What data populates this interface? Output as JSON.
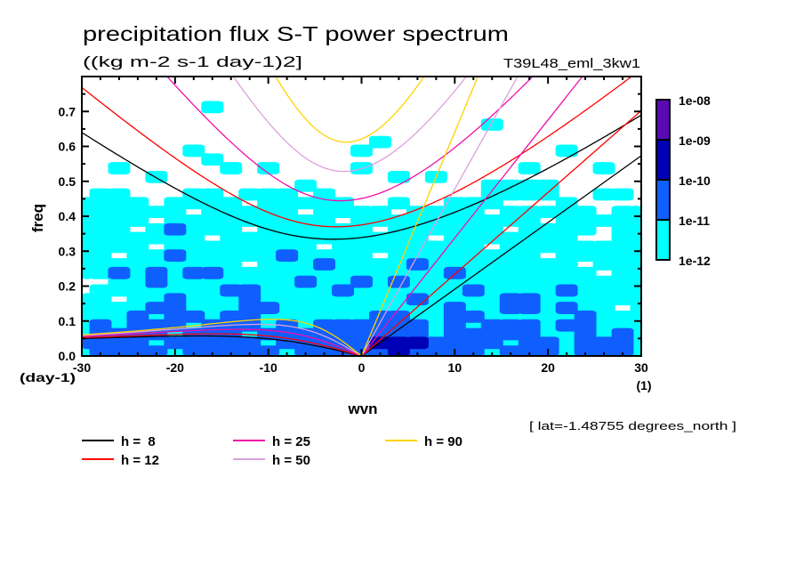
{
  "chart_data": {
    "type": "heatmap",
    "title": "precipitation flux S-T power spectrum",
    "subtitle": "((kg m-2 s-1 day-1)2]",
    "run_label": "T39L48_eml_3kw1",
    "footnote": "[ lat=-1.48755 degrees_north ]",
    "xlabel": "wvn",
    "xunits": "(1)",
    "ylabel": "freq",
    "yunits": "(day-1)",
    "xlim": [
      -30,
      30
    ],
    "ylim": [
      0,
      0.8
    ],
    "xticks": [
      -30,
      -20,
      -10,
      0,
      10,
      20,
      30
    ],
    "xtick_labels": [
      "-30",
      "-20",
      "-10",
      "0",
      "10",
      "20",
      "30"
    ],
    "minor_xtick_step": 2,
    "yticks": [
      0,
      0.1,
      0.2,
      0.3,
      0.4,
      0.5,
      0.6,
      0.7
    ],
    "ytick_labels": [
      "0.0",
      "0.1",
      "0.2",
      "0.3",
      "0.4",
      "0.5",
      "0.6",
      "0.7"
    ],
    "minor_ytick_step": 0.05,
    "grid_lines": false,
    "colorbar": {
      "position": "right",
      "levels": [
        "1e-12",
        "1e-11",
        "1e-10",
        "1e-09",
        "1e-08"
      ],
      "colors": [
        "#00ffff",
        "#0f5fff",
        "#0000b4",
        "#5a0ab4"
      ]
    },
    "grid": {
      "wavenumbers": [
        -30,
        -28,
        -26,
        -24,
        -22,
        -20,
        -18,
        -16,
        -14,
        -12,
        -10,
        -8,
        -6,
        -4,
        -2,
        0,
        2,
        4,
        6,
        8,
        10,
        12,
        14,
        16,
        18,
        20,
        22,
        24,
        26,
        28,
        30
      ],
      "frequencies": [
        0.7875,
        0.7625,
        0.7375,
        0.7125,
        0.6875,
        0.6625,
        0.6375,
        0.6125,
        0.5875,
        0.5625,
        0.5375,
        0.5125,
        0.4875,
        0.4625,
        0.4375,
        0.4125,
        0.3875,
        0.3625,
        0.3375,
        0.3125,
        0.2875,
        0.2625,
        0.2375,
        0.2125,
        0.1875,
        0.1625,
        0.1375,
        0.1125,
        0.0875,
        0.0625,
        0.0375,
        0.0125
      ],
      "levels": [
        [
          0,
          0,
          0,
          0,
          0,
          0,
          0,
          0,
          0,
          0,
          0,
          0,
          0,
          0,
          0,
          0,
          0,
          0,
          0,
          0,
          0,
          0,
          0,
          0,
          0,
          0,
          0,
          0,
          0,
          0,
          0
        ],
        [
          0,
          0,
          0,
          0,
          0,
          0,
          0,
          0,
          0,
          0,
          0,
          0,
          0,
          0,
          0,
          0,
          0,
          0,
          0,
          0,
          0,
          0,
          0,
          0,
          0,
          0,
          0,
          0,
          0,
          0,
          0
        ],
        [
          0,
          0,
          0,
          0,
          0,
          0,
          0,
          0,
          0,
          0,
          0,
          0,
          0,
          0,
          0,
          0,
          0,
          0,
          0,
          0,
          0,
          0,
          0,
          0,
          0,
          0,
          0,
          0,
          0,
          0,
          0
        ],
        [
          0,
          0,
          0,
          0,
          0,
          0,
          0,
          1,
          0,
          0,
          0,
          0,
          0,
          0,
          0,
          0,
          0,
          0,
          0,
          0,
          0,
          0,
          0,
          0,
          0,
          0,
          0,
          0,
          0,
          0,
          0
        ],
        [
          0,
          0,
          0,
          0,
          0,
          0,
          0,
          0,
          0,
          0,
          0,
          0,
          0,
          0,
          0,
          0,
          0,
          0,
          0,
          0,
          0,
          0,
          0,
          0,
          0,
          0,
          0,
          0,
          0,
          0,
          0
        ],
        [
          0,
          0,
          0,
          0,
          0,
          0,
          0,
          0,
          0,
          0,
          0,
          0,
          0,
          0,
          0,
          0,
          0,
          0,
          0,
          0,
          0,
          0,
          1,
          0,
          0,
          0,
          0,
          0,
          0,
          0,
          0
        ],
        [
          0,
          0,
          0,
          0,
          0,
          0,
          0,
          0,
          0,
          0,
          0,
          0,
          0,
          0,
          0,
          0,
          0,
          0,
          0,
          0,
          0,
          0,
          0,
          0,
          0,
          0,
          0,
          0,
          0,
          0,
          0
        ],
        [
          0,
          0,
          0,
          0,
          0,
          0,
          0,
          0,
          0,
          0,
          0,
          0,
          0,
          0,
          0,
          0,
          1,
          0,
          0,
          0,
          0,
          0,
          0,
          0,
          0,
          0,
          0,
          0,
          0,
          0,
          0
        ],
        [
          0,
          0,
          0,
          0,
          0,
          0,
          1,
          0,
          0,
          0,
          0,
          0,
          0,
          0,
          0,
          1,
          0,
          0,
          0,
          0,
          0,
          0,
          0,
          0,
          0,
          0,
          1,
          0,
          0,
          0,
          0
        ],
        [
          0,
          0,
          0,
          0,
          0,
          0,
          0,
          1,
          0,
          0,
          0,
          0,
          0,
          0,
          0,
          0,
          0,
          0,
          0,
          0,
          0,
          0,
          0,
          0,
          0,
          0,
          0,
          0,
          0,
          0,
          0
        ],
        [
          0,
          0,
          1,
          0,
          0,
          0,
          0,
          0,
          1,
          0,
          1,
          0,
          0,
          0,
          0,
          1,
          0,
          0,
          0,
          0,
          0,
          0,
          0,
          0,
          1,
          0,
          0,
          0,
          1,
          0,
          0
        ],
        [
          0,
          0,
          0,
          0,
          1,
          0,
          0,
          0,
          0,
          0,
          0,
          0,
          0,
          0,
          0,
          0,
          0,
          1,
          0,
          1,
          0,
          0,
          0,
          0,
          0,
          0,
          0,
          0,
          0,
          0,
          0
        ],
        [
          0,
          0,
          0,
          0,
          0,
          0,
          0,
          0,
          0,
          0,
          0,
          0,
          1,
          0,
          0,
          0,
          0,
          0,
          0,
          0,
          0,
          0,
          1,
          1,
          1,
          1,
          0,
          0,
          0,
          0,
          0
        ],
        [
          0,
          1,
          1,
          0,
          0,
          0,
          1,
          1,
          0,
          1,
          1,
          1,
          0,
          1,
          0,
          0,
          0,
          0,
          0,
          0,
          0,
          0,
          1,
          1,
          1,
          1,
          0,
          0,
          1,
          1,
          0
        ],
        [
          1,
          1,
          1,
          1,
          0,
          1,
          1,
          1,
          1,
          0,
          1,
          1,
          1,
          1,
          1,
          0,
          0,
          1,
          0,
          0,
          1,
          1,
          1,
          0,
          0,
          0,
          1,
          0,
          0,
          0,
          0
        ],
        [
          1,
          1,
          1,
          1,
          1,
          1,
          0,
          1,
          1,
          1,
          1,
          1,
          0,
          1,
          1,
          1,
          1,
          0,
          1,
          1,
          1,
          1,
          0,
          1,
          1,
          1,
          1,
          1,
          0,
          1,
          1
        ],
        [
          1,
          1,
          1,
          1,
          0,
          1,
          1,
          1,
          1,
          1,
          1,
          1,
          1,
          1,
          0,
          1,
          1,
          1,
          1,
          1,
          1,
          1,
          1,
          1,
          1,
          0,
          1,
          1,
          1,
          1,
          1
        ],
        [
          1,
          1,
          1,
          0,
          1,
          2,
          1,
          1,
          1,
          0,
          1,
          1,
          1,
          1,
          1,
          1,
          0,
          1,
          1,
          1,
          1,
          1,
          1,
          0,
          1,
          1,
          1,
          1,
          0,
          1,
          1
        ],
        [
          1,
          1,
          1,
          1,
          1,
          1,
          1,
          0,
          1,
          1,
          1,
          1,
          1,
          1,
          1,
          1,
          1,
          1,
          1,
          0,
          1,
          1,
          1,
          1,
          1,
          1,
          1,
          0,
          0,
          1,
          1
        ],
        [
          1,
          1,
          1,
          1,
          0,
          1,
          1,
          1,
          1,
          1,
          1,
          1,
          1,
          0,
          1,
          1,
          1,
          1,
          1,
          1,
          1,
          1,
          0,
          1,
          1,
          1,
          1,
          1,
          1,
          1,
          1
        ],
        [
          1,
          1,
          0,
          1,
          1,
          2,
          1,
          1,
          1,
          1,
          1,
          2,
          1,
          1,
          1,
          1,
          0,
          1,
          1,
          1,
          1,
          1,
          1,
          1,
          1,
          0,
          1,
          1,
          1,
          1,
          1
        ],
        [
          1,
          1,
          1,
          1,
          1,
          1,
          1,
          1,
          1,
          0,
          1,
          1,
          1,
          2,
          1,
          1,
          1,
          1,
          2,
          1,
          1,
          1,
          1,
          1,
          1,
          1,
          1,
          0,
          1,
          1,
          1
        ],
        [
          1,
          1,
          2,
          1,
          2,
          1,
          2,
          2,
          1,
          1,
          1,
          1,
          1,
          1,
          1,
          1,
          1,
          1,
          1,
          1,
          2,
          1,
          1,
          1,
          1,
          1,
          1,
          1,
          0,
          1,
          1
        ],
        [
          0,
          0,
          1,
          1,
          2,
          1,
          1,
          1,
          1,
          1,
          1,
          1,
          2,
          1,
          1,
          2,
          1,
          2,
          1,
          1,
          1,
          1,
          1,
          1,
          1,
          1,
          1,
          1,
          1,
          1,
          1
        ],
        [
          0,
          1,
          1,
          1,
          1,
          1,
          1,
          1,
          2,
          2,
          1,
          1,
          1,
          1,
          2,
          1,
          1,
          1,
          1,
          1,
          1,
          2,
          1,
          1,
          1,
          1,
          2,
          1,
          1,
          1,
          1
        ],
        [
          1,
          1,
          0,
          1,
          1,
          2,
          1,
          1,
          1,
          2,
          1,
          1,
          1,
          1,
          1,
          1,
          1,
          1,
          2,
          1,
          1,
          1,
          1,
          2,
          2,
          1,
          1,
          1,
          1,
          1,
          1
        ],
        [
          1,
          1,
          1,
          1,
          2,
          2,
          1,
          1,
          1,
          2,
          2,
          1,
          1,
          1,
          1,
          1,
          1,
          1,
          1,
          1,
          2,
          1,
          1,
          2,
          2,
          1,
          2,
          1,
          1,
          0,
          1
        ],
        [
          1,
          1,
          1,
          2,
          1,
          2,
          2,
          1,
          2,
          2,
          1,
          1,
          1,
          1,
          1,
          1,
          2,
          2,
          1,
          1,
          2,
          2,
          1,
          1,
          1,
          1,
          1,
          2,
          1,
          1,
          1
        ],
        [
          1,
          2,
          1,
          2,
          2,
          2,
          1,
          2,
          2,
          2,
          1,
          2,
          1,
          2,
          2,
          2,
          2,
          2,
          2,
          1,
          2,
          1,
          2,
          2,
          2,
          1,
          2,
          2,
          1,
          1,
          1
        ],
        [
          1,
          2,
          2,
          2,
          2,
          1,
          2,
          2,
          2,
          1,
          2,
          2,
          2,
          2,
          2,
          2,
          2,
          2,
          2,
          1,
          2,
          2,
          2,
          2,
          2,
          1,
          1,
          2,
          1,
          2,
          1
        ],
        [
          2,
          2,
          2,
          2,
          1,
          2,
          2,
          2,
          2,
          2,
          1,
          2,
          2,
          2,
          2,
          2,
          3,
          3,
          3,
          2,
          2,
          2,
          2,
          1,
          2,
          2,
          1,
          2,
          2,
          2,
          1
        ],
        [
          1,
          2,
          2,
          2,
          2,
          1,
          2,
          2,
          2,
          2,
          2,
          1,
          2,
          2,
          2,
          2,
          2,
          3,
          2,
          2,
          2,
          2,
          1,
          2,
          2,
          2,
          1,
          2,
          2,
          2,
          1
        ]
      ]
    },
    "dispersion_curves": [
      {
        "label": "h =  8",
        "h": 8,
        "color": "#000000"
      },
      {
        "label": "h = 12",
        "h": 12,
        "color": "#ff0000"
      },
      {
        "label": "h = 25",
        "h": 25,
        "color": "#f010a8"
      },
      {
        "label": "h = 50",
        "h": 50,
        "color": "#dca0dc"
      },
      {
        "label": "h = 90",
        "h": 90,
        "color": "#ffd200"
      }
    ],
    "legend_position": "bottom-left"
  }
}
